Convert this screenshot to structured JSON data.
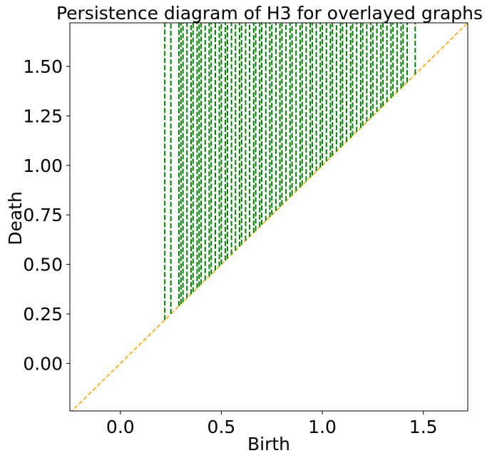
{
  "chart_data": {
    "type": "line",
    "title": "Persistence diagram of H3 for overlayed graphs",
    "xlabel": "Birth",
    "ylabel": "Death",
    "xlim": [
      -0.25,
      1.72
    ],
    "ylim": [
      -0.24,
      1.72
    ],
    "xticks": [
      0.0,
      0.5,
      1.0,
      1.5
    ],
    "xtick_labels": [
      "0.0",
      "0.5",
      "1.0",
      "1.5"
    ],
    "yticks": [
      0.0,
      0.25,
      0.5,
      0.75,
      1.0,
      1.25,
      1.5
    ],
    "ytick_labels": [
      "0.00",
      "0.25",
      "0.50",
      "0.75",
      "1.00",
      "1.25",
      "1.50"
    ],
    "grid": false,
    "diagonal": {
      "style": "dashed",
      "color": "#ffa500"
    },
    "bars": {
      "style": "dashed",
      "color": "#008000",
      "death": "infinite",
      "births": [
        0.22,
        0.25,
        0.29,
        0.3,
        0.31,
        0.33,
        0.35,
        0.36,
        0.38,
        0.39,
        0.4,
        0.42,
        0.44,
        0.45,
        0.47,
        0.49,
        0.5,
        0.52,
        0.53,
        0.55,
        0.57,
        0.59,
        0.6,
        0.62,
        0.64,
        0.66,
        0.67,
        0.69,
        0.7,
        0.72,
        0.74,
        0.75,
        0.77,
        0.79,
        0.8,
        0.82,
        0.84,
        0.85,
        0.87,
        0.89,
        0.9,
        0.92,
        0.94,
        0.95,
        0.97,
        0.99,
        1.0,
        1.02,
        1.04,
        1.05,
        1.07,
        1.09,
        1.1,
        1.12,
        1.14,
        1.15,
        1.17,
        1.19,
        1.2,
        1.22,
        1.24,
        1.25,
        1.27,
        1.29,
        1.3,
        1.32,
        1.34,
        1.35,
        1.37,
        1.39,
        1.4,
        1.42,
        1.46
      ]
    }
  }
}
